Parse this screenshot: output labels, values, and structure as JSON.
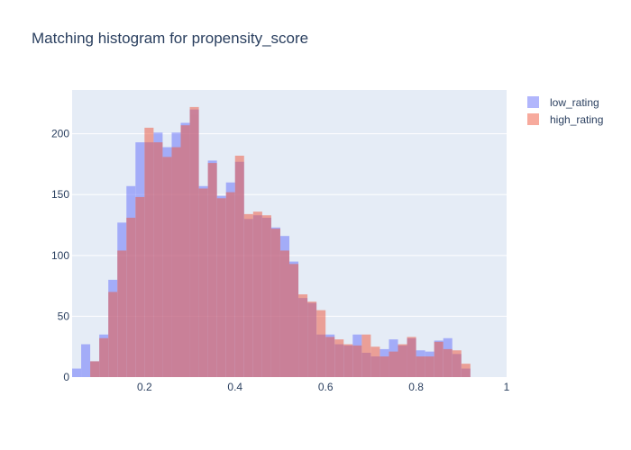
{
  "chart_data": {
    "type": "histogram",
    "title": "Matching histogram for propensity_score",
    "xlabel": "",
    "ylabel": "",
    "xlim": [
      0.04,
      1.0
    ],
    "ylim": [
      0,
      236
    ],
    "bin_width": 0.02,
    "bin_starts": [
      0.04,
      0.06,
      0.08,
      0.1,
      0.12,
      0.14,
      0.16,
      0.18,
      0.2,
      0.22,
      0.24,
      0.26,
      0.28,
      0.3,
      0.32,
      0.34,
      0.36,
      0.38,
      0.4,
      0.42,
      0.44,
      0.46,
      0.48,
      0.5,
      0.52,
      0.54,
      0.56,
      0.58,
      0.6,
      0.62,
      0.64,
      0.66,
      0.68,
      0.7,
      0.72,
      0.74,
      0.76,
      0.78,
      0.8,
      0.82,
      0.84,
      0.86,
      0.88,
      0.9,
      0.92,
      0.94,
      0.96,
      0.98
    ],
    "x_ticks": [
      {
        "value": 0.2,
        "label": "0.2"
      },
      {
        "value": 0.4,
        "label": "0.4"
      },
      {
        "value": 0.6,
        "label": "0.6"
      },
      {
        "value": 0.8,
        "label": "0.8"
      },
      {
        "value": 1.0,
        "label": "1"
      }
    ],
    "y_ticks": [
      {
        "value": 0,
        "label": "0"
      },
      {
        "value": 50,
        "label": "50"
      },
      {
        "value": 100,
        "label": "100"
      },
      {
        "value": 150,
        "label": "150"
      },
      {
        "value": 200,
        "label": "200"
      }
    ],
    "grid": true,
    "legend_position": "top-right",
    "series": [
      {
        "name": "low_rating",
        "color": "#636efa",
        "values": [
          7,
          27,
          13,
          35,
          80,
          127,
          157,
          193,
          193,
          201,
          189,
          201,
          209,
          220,
          157,
          178,
          149,
          160,
          177,
          130,
          133,
          131,
          123,
          116,
          95,
          65,
          61,
          35,
          35,
          27,
          26,
          35,
          20,
          17,
          23,
          31,
          26,
          32,
          22,
          21,
          30,
          32,
          19,
          7,
          0,
          0,
          0,
          0
        ]
      },
      {
        "name": "high_rating",
        "color": "#ef553b",
        "values": [
          0,
          0,
          13,
          32,
          70,
          104,
          131,
          148,
          205,
          193,
          181,
          189,
          207,
          222,
          155,
          176,
          147,
          152,
          182,
          134,
          136,
          133,
          122,
          104,
          93,
          68,
          62,
          55,
          33,
          31,
          27,
          26,
          35,
          25,
          17,
          21,
          27,
          33,
          17,
          17,
          29,
          23,
          22,
          11,
          0,
          0,
          0,
          0
        ]
      }
    ]
  }
}
